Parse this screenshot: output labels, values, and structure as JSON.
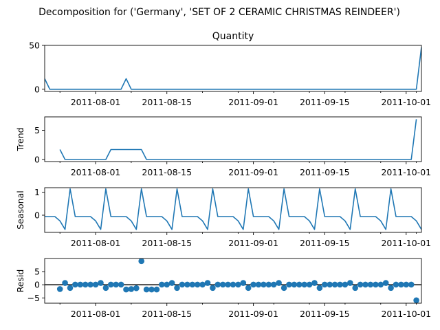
{
  "figure": {
    "suptitle": "Decomposition for ('Germany', 'SET OF 2 CERAMIC CHRISTMAS REINDEER')"
  },
  "colors": {
    "series": "#1f77b4",
    "axis": "#000000"
  },
  "chart_data": [
    {
      "type": "line",
      "title": "Quantity",
      "ylabel": "",
      "xlabel": "",
      "x_start": "2011-07-22",
      "x_end": "2011-10-04",
      "ylim": [
        -2.5,
        50
      ],
      "yticks": [
        "0",
        "50"
      ],
      "xticks": [
        "2011-08-01",
        "2011-08-15",
        "2011-09-01",
        "2011-09-15",
        "2011-10-01"
      ],
      "series": [
        {
          "values": [
            {
              "x": "2011-07-22",
              "y": 12
            },
            {
              "x": "2011-07-23",
              "y": 0
            },
            {
              "x": "2011-08-06",
              "y": 0
            },
            {
              "x": "2011-08-07",
              "y": 12
            },
            {
              "x": "2011-08-08",
              "y": 0
            },
            {
              "x": "2011-10-03",
              "y": 0
            },
            {
              "x": "2011-10-04",
              "y": 48
            }
          ]
        }
      ]
    },
    {
      "type": "line",
      "title": "",
      "ylabel": "Trend",
      "xlabel": "",
      "x_start": "2011-07-22",
      "x_end": "2011-10-04",
      "ylim": [
        -0.35,
        7.3
      ],
      "yticks": [
        "0",
        "5"
      ],
      "xticks": [
        "2011-08-01",
        "2011-08-15",
        "2011-09-01",
        "2011-09-15",
        "2011-10-01"
      ],
      "series": [
        {
          "values": [
            {
              "x": "2011-07-25",
              "y": 1.71
            },
            {
              "x": "2011-07-26",
              "y": 0
            },
            {
              "x": "2011-08-03",
              "y": 0
            },
            {
              "x": "2011-08-04",
              "y": 1.71
            },
            {
              "x": "2011-08-10",
              "y": 1.71
            },
            {
              "x": "2011-08-11",
              "y": 0
            },
            {
              "x": "2011-10-02",
              "y": 0
            },
            {
              "x": "2011-10-03",
              "y": 6.9
            }
          ]
        }
      ]
    },
    {
      "type": "line",
      "title": "",
      "ylabel": "Seasonal",
      "xlabel": "",
      "x_start": "2011-07-22",
      "x_end": "2011-10-04",
      "ylim": [
        -0.75,
        1.2
      ],
      "yticks": [
        "1",
        "0"
      ],
      "xticks": [
        "2011-08-01",
        "2011-08-15",
        "2011-09-01",
        "2011-09-15",
        "2011-10-01"
      ],
      "weekly_pattern": [
        -0.06,
        -0.06,
        -0.06,
        -0.25,
        -0.62,
        1.15,
        -0.06
      ],
      "pattern_start": "2011-07-22"
    },
    {
      "type": "scatter",
      "title": "",
      "ylabel": "Resid",
      "xlabel": "",
      "x_start": "2011-07-22",
      "x_end": "2011-10-04",
      "ylim": [
        -7,
        10
      ],
      "yticks": [
        "5",
        "0",
        "−5"
      ],
      "xticks": [
        "2011-08-01",
        "2011-08-15",
        "2011-09-01",
        "2011-09-15",
        "2011-10-01"
      ],
      "zero_line": true,
      "points": [
        {
          "x": "2011-07-25",
          "y": -1.6
        },
        {
          "x": "2011-07-26",
          "y": 0.7
        },
        {
          "x": "2011-07-27",
          "y": -1.2
        },
        {
          "x": "2011-07-28",
          "y": 0.1
        },
        {
          "x": "2011-07-29",
          "y": 0.1
        },
        {
          "x": "2011-07-30",
          "y": 0.1
        },
        {
          "x": "2011-07-31",
          "y": 0.1
        },
        {
          "x": "2011-08-01",
          "y": 0.1
        },
        {
          "x": "2011-08-02",
          "y": 0.7
        },
        {
          "x": "2011-08-03",
          "y": -1.2
        },
        {
          "x": "2011-08-04",
          "y": 0.1
        },
        {
          "x": "2011-08-05",
          "y": 0.1
        },
        {
          "x": "2011-08-06",
          "y": 0.1
        },
        {
          "x": "2011-08-07",
          "y": -1.8
        },
        {
          "x": "2011-08-08",
          "y": -1.6
        },
        {
          "x": "2011-08-09",
          "y": -1.3
        },
        {
          "x": "2011-08-10",
          "y": 9.0
        },
        {
          "x": "2011-08-11",
          "y": -1.8
        },
        {
          "x": "2011-08-12",
          "y": -1.8
        },
        {
          "x": "2011-08-13",
          "y": -1.8
        },
        {
          "x": "2011-08-14",
          "y": 0.1
        },
        {
          "x": "2011-08-15",
          "y": 0.1
        },
        {
          "x": "2011-08-16",
          "y": 0.7
        },
        {
          "x": "2011-08-17",
          "y": -1.2
        },
        {
          "x": "2011-08-18",
          "y": 0.1
        },
        {
          "x": "2011-08-19",
          "y": 0.1
        },
        {
          "x": "2011-08-20",
          "y": 0.1
        },
        {
          "x": "2011-08-21",
          "y": 0.1
        },
        {
          "x": "2011-08-22",
          "y": 0.1
        },
        {
          "x": "2011-08-23",
          "y": 0.7
        },
        {
          "x": "2011-08-24",
          "y": -1.2
        },
        {
          "x": "2011-08-25",
          "y": 0.1
        },
        {
          "x": "2011-08-26",
          "y": 0.1
        },
        {
          "x": "2011-08-27",
          "y": 0.1
        },
        {
          "x": "2011-08-28",
          "y": 0.1
        },
        {
          "x": "2011-08-29",
          "y": 0.1
        },
        {
          "x": "2011-08-30",
          "y": 0.7
        },
        {
          "x": "2011-08-31",
          "y": -1.2
        },
        {
          "x": "2011-09-01",
          "y": 0.1
        },
        {
          "x": "2011-09-02",
          "y": 0.1
        },
        {
          "x": "2011-09-03",
          "y": 0.1
        },
        {
          "x": "2011-09-04",
          "y": 0.1
        },
        {
          "x": "2011-09-05",
          "y": 0.1
        },
        {
          "x": "2011-09-06",
          "y": 0.7
        },
        {
          "x": "2011-09-07",
          "y": -1.2
        },
        {
          "x": "2011-09-08",
          "y": 0.1
        },
        {
          "x": "2011-09-09",
          "y": 0.1
        },
        {
          "x": "2011-09-10",
          "y": 0.1
        },
        {
          "x": "2011-09-11",
          "y": 0.1
        },
        {
          "x": "2011-09-12",
          "y": 0.1
        },
        {
          "x": "2011-09-13",
          "y": 0.7
        },
        {
          "x": "2011-09-14",
          "y": -1.2
        },
        {
          "x": "2011-09-15",
          "y": 0.1
        },
        {
          "x": "2011-09-16",
          "y": 0.1
        },
        {
          "x": "2011-09-17",
          "y": 0.1
        },
        {
          "x": "2011-09-18",
          "y": 0.1
        },
        {
          "x": "2011-09-19",
          "y": 0.1
        },
        {
          "x": "2011-09-20",
          "y": 0.7
        },
        {
          "x": "2011-09-21",
          "y": -1.2
        },
        {
          "x": "2011-09-22",
          "y": 0.1
        },
        {
          "x": "2011-09-23",
          "y": 0.1
        },
        {
          "x": "2011-09-24",
          "y": 0.1
        },
        {
          "x": "2011-09-25",
          "y": 0.1
        },
        {
          "x": "2011-09-26",
          "y": 0.1
        },
        {
          "x": "2011-09-27",
          "y": 0.7
        },
        {
          "x": "2011-09-28",
          "y": -1.2
        },
        {
          "x": "2011-09-29",
          "y": 0.1
        },
        {
          "x": "2011-09-30",
          "y": 0.1
        },
        {
          "x": "2011-10-01",
          "y": 0.1
        },
        {
          "x": "2011-10-02",
          "y": 0.1
        },
        {
          "x": "2011-10-03",
          "y": -5.9
        }
      ]
    }
  ]
}
